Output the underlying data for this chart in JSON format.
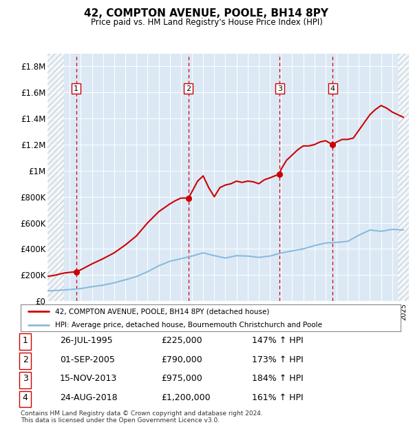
{
  "title": "42, COMPTON AVENUE, POOLE, BH14 8PY",
  "subtitle": "Price paid vs. HM Land Registry's House Price Index (HPI)",
  "legend_line1": "42, COMPTON AVENUE, POOLE, BH14 8PY (detached house)",
  "legend_line2": "HPI: Average price, detached house, Bournemouth Christchurch and Poole",
  "footer_line1": "Contains HM Land Registry data © Crown copyright and database right 2024.",
  "footer_line2": "This data is licensed under the Open Government Licence v3.0.",
  "sales": [
    {
      "num": 1,
      "date": "26-JUL-1995",
      "year": 1995.57,
      "price": 225000,
      "hpi_pct": "147%"
    },
    {
      "num": 2,
      "date": "01-SEP-2005",
      "year": 2005.67,
      "price": 790000,
      "hpi_pct": "173%"
    },
    {
      "num": 3,
      "date": "15-NOV-2013",
      "year": 2013.88,
      "price": 975000,
      "hpi_pct": "184%"
    },
    {
      "num": 4,
      "date": "24-AUG-2018",
      "year": 2018.65,
      "price": 1200000,
      "hpi_pct": "161%"
    }
  ],
  "table_rows": [
    [
      "1",
      "26-JUL-1995",
      "£225,000",
      "147% ↑ HPI"
    ],
    [
      "2",
      "01-SEP-2005",
      "£790,000",
      "173% ↑ HPI"
    ],
    [
      "3",
      "15-NOV-2013",
      "£975,000",
      "184% ↑ HPI"
    ],
    [
      "4",
      "24-AUG-2018",
      "£1,200,000",
      "161% ↑ HPI"
    ]
  ],
  "xlim": [
    1993.0,
    2025.5
  ],
  "ylim": [
    0,
    1900000
  ],
  "yticks": [
    0,
    200000,
    400000,
    600000,
    800000,
    1000000,
    1200000,
    1400000,
    1600000,
    1800000
  ],
  "ytick_labels": [
    "£0",
    "£200K",
    "£400K",
    "£600K",
    "£800K",
    "£1M",
    "£1.2M",
    "£1.4M",
    "£1.6M",
    "£1.8M"
  ],
  "bg_color": "#dce9f5",
  "hatch_color": "#b0b8c0",
  "red_line_color": "#cc0000",
  "blue_line_color": "#88bbdd",
  "grid_color": "#ffffff",
  "sale_line_color": "#cc0000",
  "hatch_left_end_year": 1994.5,
  "hatch_right_start_year": 2024.5,
  "years_hpi": [
    1993,
    1994,
    1995,
    1996,
    1997,
    1998,
    1999,
    2000,
    2001,
    2002,
    2003,
    2004,
    2005,
    2006,
    2007,
    2008,
    2009,
    2010,
    2011,
    2012,
    2013,
    2014,
    2015,
    2016,
    2017,
    2018,
    2019,
    2020,
    2021,
    2022,
    2023,
    2024,
    2025
  ],
  "hpi_values": [
    78000,
    82000,
    88000,
    96000,
    110000,
    122000,
    140000,
    163000,
    188000,
    225000,
    270000,
    305000,
    325000,
    345000,
    370000,
    348000,
    330000,
    348000,
    345000,
    335000,
    345000,
    368000,
    385000,
    400000,
    425000,
    445000,
    450000,
    458000,
    505000,
    545000,
    535000,
    550000,
    545000
  ],
  "red_years": [
    1993.0,
    1993.5,
    1994.0,
    1994.5,
    1995.0,
    1995.57,
    1996.0,
    1997.0,
    1998.0,
    1999.0,
    2000.0,
    2001.0,
    2002.0,
    2003.0,
    2004.0,
    2004.5,
    2005.0,
    2005.67,
    2006.0,
    2006.5,
    2007.0,
    2007.5,
    2008.0,
    2008.5,
    2009.0,
    2009.5,
    2010.0,
    2010.5,
    2011.0,
    2011.5,
    2012.0,
    2012.5,
    2013.0,
    2013.88,
    2014.0,
    2014.5,
    2015.0,
    2015.5,
    2016.0,
    2016.5,
    2017.0,
    2017.5,
    2018.0,
    2018.65,
    2019.0,
    2019.5,
    2020.0,
    2020.5,
    2021.0,
    2021.5,
    2022.0,
    2022.5,
    2023.0,
    2023.5,
    2024.0,
    2024.5,
    2025.0
  ],
  "red_values": [
    190000,
    195000,
    205000,
    215000,
    220000,
    225000,
    240000,
    285000,
    325000,
    370000,
    430000,
    500000,
    600000,
    685000,
    745000,
    770000,
    790000,
    790000,
    840000,
    920000,
    960000,
    870000,
    800000,
    870000,
    890000,
    900000,
    920000,
    910000,
    920000,
    915000,
    900000,
    930000,
    945000,
    975000,
    1010000,
    1080000,
    1120000,
    1160000,
    1190000,
    1190000,
    1200000,
    1220000,
    1230000,
    1200000,
    1220000,
    1240000,
    1240000,
    1250000,
    1310000,
    1370000,
    1430000,
    1470000,
    1500000,
    1480000,
    1450000,
    1430000,
    1410000
  ]
}
